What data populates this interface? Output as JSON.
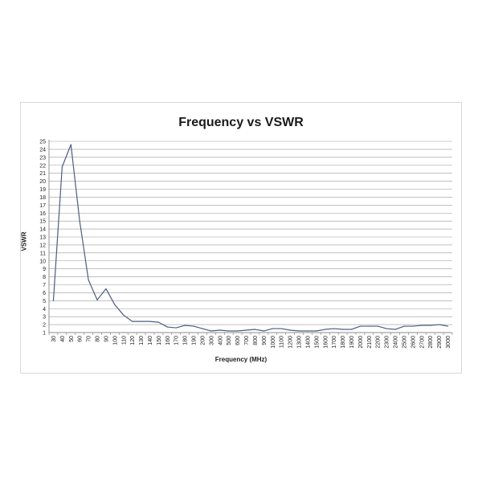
{
  "chart_data": {
    "type": "line",
    "title": "Frequency vs VSWR",
    "xlabel": "Frequency (MHz)",
    "ylabel": "VSWR",
    "ylim": [
      1,
      25
    ],
    "yticks": [
      1,
      2,
      3,
      4,
      5,
      6,
      7,
      8,
      9,
      10,
      11,
      12,
      13,
      14,
      15,
      16,
      17,
      18,
      19,
      20,
      21,
      22,
      23,
      24,
      25
    ],
    "grid": "horizontal",
    "line_color": "#4a5e80",
    "categories": [
      "30",
      "40",
      "50",
      "60",
      "70",
      "80",
      "90",
      "100",
      "110",
      "120",
      "130",
      "140",
      "150",
      "160",
      "170",
      "180",
      "190",
      "200",
      "300",
      "400",
      "500",
      "600",
      "700",
      "800",
      "900",
      "1000",
      "1100",
      "1200",
      "1300",
      "1400",
      "1500",
      "1600",
      "1700",
      "1800",
      "1900",
      "2000",
      "2100",
      "2200",
      "2300",
      "2400",
      "2500",
      "2600",
      "2700",
      "2800",
      "2900",
      "3000"
    ],
    "values": [
      5.0,
      21.8,
      24.6,
      15.0,
      7.6,
      5.1,
      6.5,
      4.5,
      3.2,
      2.4,
      2.4,
      2.4,
      2.3,
      1.7,
      1.6,
      1.9,
      1.8,
      1.5,
      1.2,
      1.3,
      1.2,
      1.2,
      1.3,
      1.4,
      1.2,
      1.5,
      1.5,
      1.3,
      1.2,
      1.2,
      1.2,
      1.4,
      1.5,
      1.4,
      1.4,
      1.8,
      1.8,
      1.8,
      1.5,
      1.4,
      1.8,
      1.8,
      1.9,
      1.9,
      2.0,
      1.8
    ]
  }
}
